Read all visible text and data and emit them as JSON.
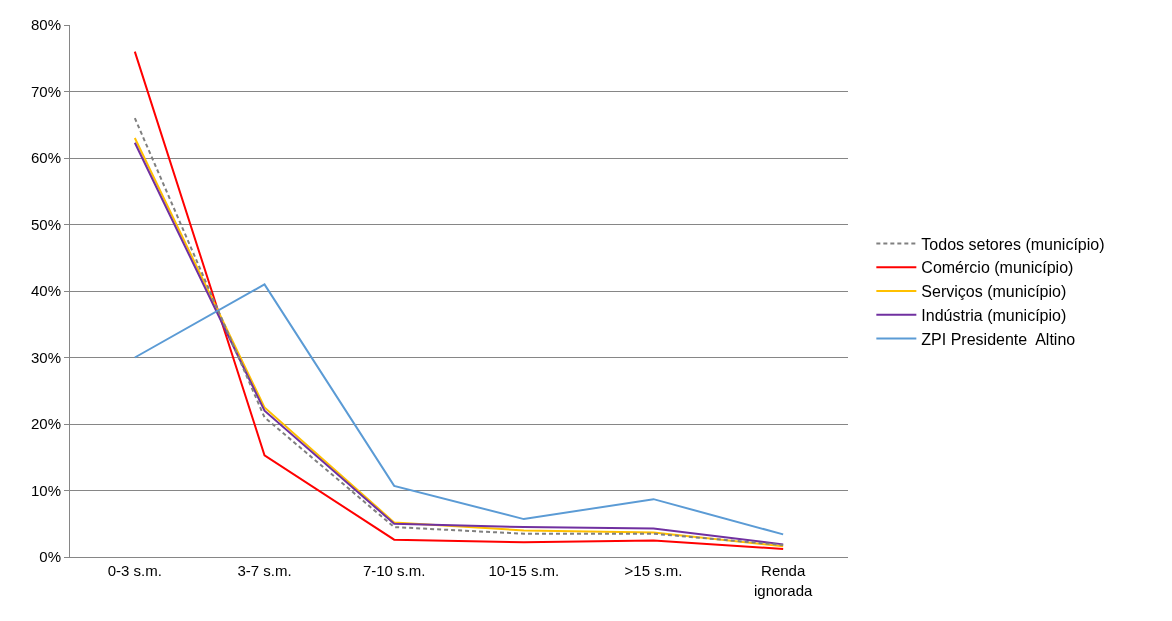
{
  "chart_data": {
    "type": "line",
    "categories": [
      "0-3 s.m.",
      "3-7 s.m.",
      "7-10 s.m.",
      "10-15 s.m.",
      ">15 s.m.",
      "Renda ignorada"
    ],
    "series": [
      {
        "name": "Todos setores (município)",
        "color": "#808080",
        "line_style": "dashed",
        "values": [
          66,
          21,
          4.5,
          3.5,
          3.5,
          1.8
        ]
      },
      {
        "name": "Comércio (município)",
        "color": "#ff0000",
        "values": [
          76,
          15.3,
          2.6,
          2.2,
          2.5,
          1.2
        ]
      },
      {
        "name": "Serviços (município)",
        "color": "#ffc000",
        "values": [
          63,
          22.5,
          5.2,
          4.0,
          3.7,
          1.6
        ]
      },
      {
        "name": "Indústria (município)",
        "color": "#7030a0",
        "values": [
          62.3,
          22,
          5.0,
          4.5,
          4.3,
          1.9
        ]
      },
      {
        "name": "ZPI Presidente  Altino",
        "color": "#5b9bd5",
        "values": [
          30,
          41,
          10.7,
          5.7,
          8.7,
          3.4
        ]
      }
    ],
    "ylim": [
      0,
      80
    ],
    "yticks": [
      {
        "value": 0,
        "label": "0%"
      },
      {
        "value": 10,
        "label": "10%"
      },
      {
        "value": 20,
        "label": "20%"
      },
      {
        "value": 30,
        "label": "30%"
      },
      {
        "value": 40,
        "label": "40%"
      },
      {
        "value": 50,
        "label": "50%"
      },
      {
        "value": 60,
        "label": "60%"
      },
      {
        "value": 70,
        "label": "70%"
      },
      {
        "value": 80,
        "label": "80%"
      }
    ],
    "grid": "y",
    "legend": "right",
    "marker": "none",
    "line_style": "solid"
  }
}
